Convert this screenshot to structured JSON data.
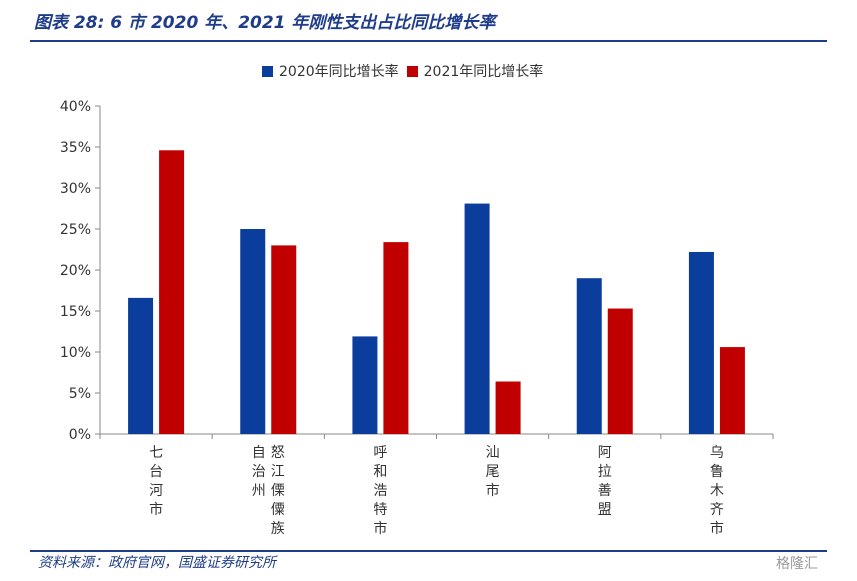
{
  "header": {
    "title": "图表 28:  6 市 2020 年、2021 年刚性支出占比同比增长率"
  },
  "footer": {
    "source": "资料来源：政府官网，国盛证券研究所",
    "watermark": "格隆汇"
  },
  "colors": {
    "accent": "#1f3c88",
    "series_2020": "#0a3d9c",
    "series_2021": "#c00000",
    "axis": "#888888"
  },
  "chart_data": {
    "type": "bar",
    "categories": [
      "七台河市",
      "怒江傈僳族自治州",
      "呼和浩特市",
      "汕尾市",
      "阿拉善盟",
      "乌鲁木齐市"
    ],
    "category_columns": [
      [
        "七台河市"
      ],
      [
        "怒江傈僳族",
        "自治州"
      ],
      [
        "呼和浩特市"
      ],
      [
        "汕尾市"
      ],
      [
        "阿拉善盟"
      ],
      [
        "乌鲁木齐市"
      ]
    ],
    "series": [
      {
        "name": "2020年同比增长率",
        "values": [
          16.6,
          25.0,
          11.9,
          28.1,
          19.0,
          22.2
        ]
      },
      {
        "name": "2021年同比增长率",
        "values": [
          34.6,
          23.0,
          23.4,
          6.4,
          15.3,
          10.6
        ]
      }
    ],
    "yticks": [
      "0%",
      "5%",
      "10%",
      "15%",
      "20%",
      "25%",
      "30%",
      "35%",
      "40%"
    ],
    "ylim": [
      0,
      40
    ],
    "grid": false,
    "legend_position": "top-center"
  }
}
